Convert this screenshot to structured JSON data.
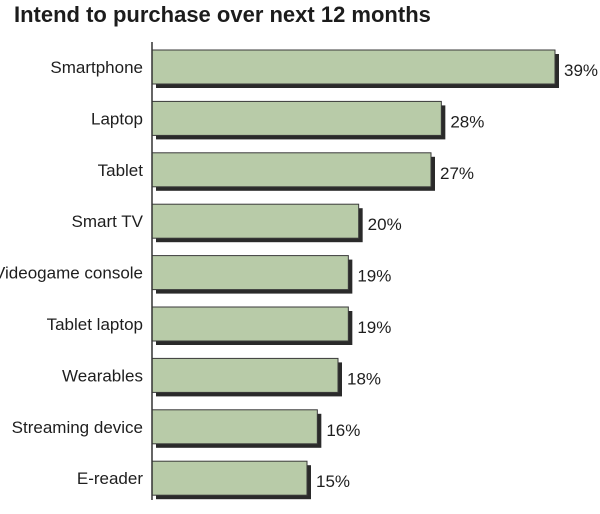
{
  "chart_data": {
    "type": "bar",
    "orientation": "horizontal",
    "title": "Intend to purchase over next 12 months",
    "categories": [
      "Smartphone",
      "Laptop",
      "Tablet",
      "Smart TV",
      "Videogame console",
      "Tablet laptop",
      "Wearables",
      "Streaming device",
      "E-reader"
    ],
    "values": [
      39,
      28,
      27,
      20,
      19,
      19,
      18,
      16,
      15
    ],
    "value_labels": [
      "39%",
      "28%",
      "27%",
      "20%",
      "19%",
      "19%",
      "18%",
      "16%",
      "15%"
    ],
    "unit": "%",
    "xlim": [
      0,
      39
    ],
    "grid": false,
    "legend": "none",
    "colors": {
      "bar": "#b8cba8",
      "bar_border": "#3a3a3a",
      "shadow": "#2a2a2a",
      "axis": "#333333",
      "text": "#1e1e1e"
    }
  }
}
